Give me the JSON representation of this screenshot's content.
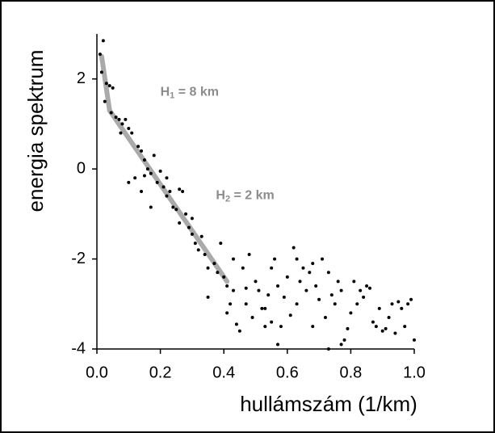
{
  "chart_data": {
    "type": "scatter",
    "ylabel": "energia spektrum",
    "xlabel": "hullámszám (1/km)",
    "xlim": [
      0,
      1
    ],
    "ylim": [
      -4,
      3
    ],
    "xticks": [
      {
        "value": 0,
        "label": "0.0"
      },
      {
        "value": 0.2,
        "label": "0.2"
      },
      {
        "value": 0.4,
        "label": "0.4"
      },
      {
        "value": 0.6,
        "label": "0.6"
      },
      {
        "value": 0.8,
        "label": "0.8"
      },
      {
        "value": 1,
        "label": "1.0"
      }
    ],
    "yticks": [
      -4,
      -2,
      0,
      2
    ],
    "color": "#000000",
    "x": [
      0.01,
      0.02,
      0.015,
      0.03,
      0.025,
      0.04,
      0.05,
      0.045,
      0.06,
      0.07,
      0.075,
      0.08,
      0.09,
      0.1,
      0.11,
      0.1,
      0.12,
      0.13,
      0.14,
      0.15,
      0.16,
      0.14,
      0.15,
      0.17,
      0.18,
      0.17,
      0.19,
      0.2,
      0.21,
      0.22,
      0.22,
      0.23,
      0.24,
      0.25,
      0.26,
      0.26,
      0.27,
      0.28,
      0.29,
      0.3,
      0.3,
      0.31,
      0.32,
      0.33,
      0.34,
      0.35,
      0.35,
      0.37,
      0.38,
      0.39,
      0.4,
      0.41,
      0.41,
      0.42,
      0.43,
      0.44,
      0.45,
      0.46,
      0.47,
      0.48,
      0.49,
      0.5,
      0.51,
      0.52,
      0.53,
      0.54,
      0.55,
      0.55,
      0.56,
      0.57,
      0.58,
      0.59,
      0.6,
      0.61,
      0.62,
      0.63,
      0.64,
      0.65,
      0.66,
      0.67,
      0.68,
      0.69,
      0.7,
      0.71,
      0.72,
      0.73,
      0.74,
      0.75,
      0.76,
      0.77,
      0.78,
      0.79,
      0.8,
      0.81,
      0.82,
      0.83,
      0.84,
      0.85,
      0.86,
      0.87,
      0.88,
      0.89,
      0.9,
      0.91,
      0.92,
      0.93,
      0.94,
      0.95,
      0.96,
      0.97,
      0.98,
      0.99,
      1.0,
      0.43,
      0.47,
      0.53,
      0.57,
      0.73,
      0.77,
      0.63,
      0.68
    ],
    "values": [
      2.55,
      2.85,
      2.15,
      1.9,
      1.5,
      1.85,
      1.8,
      1.25,
      1.15,
      1.1,
      0.8,
      1.0,
      1.1,
      0.9,
      0.8,
      -0.3,
      -0.2,
      0.5,
      0.4,
      0.2,
      0.0,
      -0.5,
      -0.15,
      -0.1,
      0.3,
      -0.85,
      -0.3,
      -0.05,
      -0.4,
      -0.6,
      -0.2,
      -0.5,
      -0.85,
      -0.9,
      -1.2,
      -0.45,
      -0.5,
      -1.0,
      -1.3,
      -1.45,
      -1.1,
      -1.65,
      -1.8,
      -1.5,
      -1.9,
      -2.2,
      -2.85,
      -2.1,
      -2.3,
      -1.65,
      -2.4,
      -2.6,
      -3.2,
      -3.0,
      -2.0,
      -3.45,
      -3.6,
      -2.2,
      -2.65,
      -1.9,
      -3.3,
      -2.5,
      -2.7,
      -3.1,
      -3.1,
      -2.8,
      -2.2,
      -3.4,
      -2.0,
      -2.6,
      -3.5,
      -2.85,
      -2.4,
      -3.25,
      -1.75,
      -2.0,
      -2.5,
      -2.2,
      -2.7,
      -2.3,
      -2.1,
      -2.6,
      -2.9,
      -2.0,
      -3.3,
      -2.3,
      -2.8,
      -3.0,
      -2.5,
      -2.7,
      -3.8,
      -3.55,
      -3.2,
      -2.5,
      -3.0,
      -2.7,
      -2.85,
      -2.6,
      -2.65,
      -3.4,
      -3.5,
      -3.1,
      -3.6,
      -3.55,
      -3.3,
      -3.0,
      -3.65,
      -2.95,
      -3.1,
      -3.5,
      -3.0,
      -2.9,
      -3.8,
      -2.7,
      -3.0,
      -3.5,
      -3.9,
      -4.0,
      -3.9,
      -3.0,
      -3.5
    ],
    "fit_lines": [
      {
        "color": "#aaaaaa",
        "x": [
          0.015,
          0.04
        ],
        "values": [
          2.5,
          1.3
        ]
      },
      {
        "color": "#aaaaaa",
        "x": [
          0.04,
          0.41
        ],
        "values": [
          1.3,
          -2.5
        ]
      }
    ],
    "annotations": [
      {
        "text": "H",
        "sub": "1",
        "rest": " = 8 km",
        "x": 0.2,
        "y": 1.7
      },
      {
        "text": "H",
        "sub": "2",
        "rest": " = 2 km",
        "x": 0.375,
        "y": -0.6
      }
    ]
  }
}
